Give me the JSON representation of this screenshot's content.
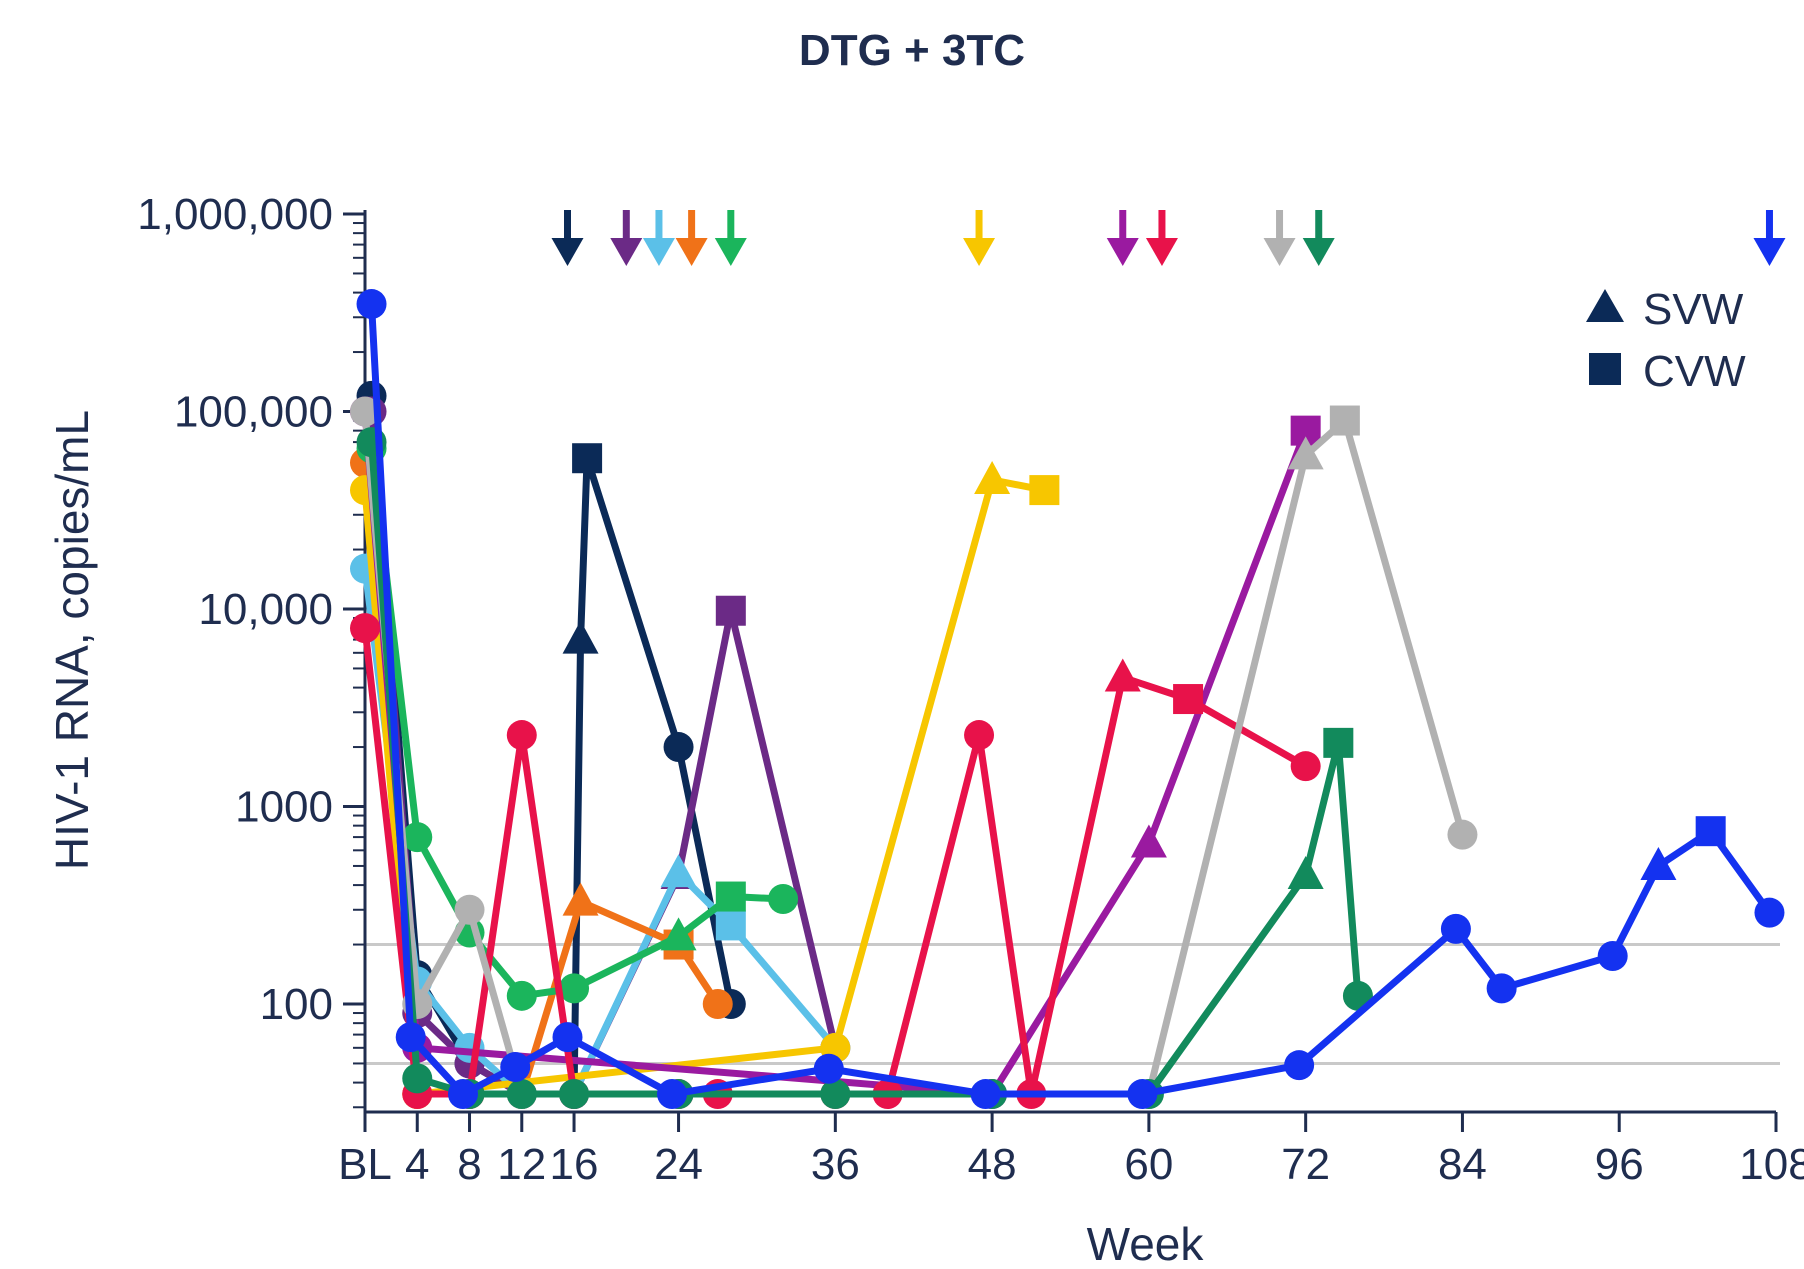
{
  "chart_data": {
    "type": "line",
    "title": "DTG + 3TC",
    "xlabel": "Week",
    "ylabel": "HIV-1  RNA, copies/mL",
    "xlim": [
      0,
      108
    ],
    "ylim": [
      30,
      1000000
    ],
    "y_scale": "log",
    "x_ticks": [
      {
        "value": 0,
        "label": "BL"
      },
      {
        "value": 4,
        "label": "4"
      },
      {
        "value": 8,
        "label": "8"
      },
      {
        "value": 12,
        "label": "12"
      },
      {
        "value": 16,
        "label": "16"
      },
      {
        "value": 24,
        "label": "24"
      },
      {
        "value": 36,
        "label": "36"
      },
      {
        "value": 48,
        "label": "48"
      },
      {
        "value": 60,
        "label": "60"
      },
      {
        "value": 72,
        "label": "72"
      },
      {
        "value": 84,
        "label": "84"
      },
      {
        "value": 96,
        "label": "96"
      },
      {
        "value": 108,
        "label": "108"
      }
    ],
    "y_ticks": [
      {
        "value": 100,
        "label": "100"
      },
      {
        "value": 1000,
        "label": "1000"
      },
      {
        "value": 10000,
        "label": "10,000"
      },
      {
        "value": 100000,
        "label": "100,000"
      },
      {
        "value": 1000000,
        "label": "1,000,000"
      }
    ],
    "reference_lines": [
      200,
      50
    ],
    "legend": {
      "placement": "top-right",
      "items": [
        {
          "marker": "triangle",
          "label": "SVW"
        },
        {
          "marker": "square",
          "label": "CVW"
        }
      ]
    },
    "series": [
      {
        "color": "#0b2a57",
        "arrow_week": 15.5,
        "points": [
          {
            "x": 0.5,
            "y": 120000,
            "m": "circle"
          },
          {
            "x": 4,
            "y": 140,
            "m": "circle"
          },
          {
            "x": 8,
            "y": 50,
            "m": "circle"
          },
          {
            "x": 12,
            "y": 35,
            "m": "circle"
          },
          {
            "x": 16,
            "y": 35,
            "m": "circle"
          },
          {
            "x": 16.5,
            "y": 7000,
            "m": "triangle"
          },
          {
            "x": 17,
            "y": 58000,
            "m": "square"
          },
          {
            "x": 24,
            "y": 2000,
            "m": "circle"
          },
          {
            "x": 28,
            "y": 100,
            "m": "circle"
          }
        ]
      },
      {
        "color": "#6b2a86",
        "arrow_week": 20,
        "points": [
          {
            "x": 0.5,
            "y": 100000,
            "m": "circle"
          },
          {
            "x": 4,
            "y": 90,
            "m": "circle"
          },
          {
            "x": 8,
            "y": 50,
            "m": "circle"
          },
          {
            "x": 12,
            "y": 35,
            "m": "circle"
          },
          {
            "x": 16,
            "y": 35,
            "m": "circle"
          },
          {
            "x": 24,
            "y": 450,
            "m": "triangle"
          },
          {
            "x": 28,
            "y": 9800,
            "m": "square"
          },
          {
            "x": 36,
            "y": 60,
            "m": "circle"
          }
        ]
      },
      {
        "color": "#5bc0e8",
        "arrow_week": 22.5,
        "points": [
          {
            "x": 0,
            "y": 16000,
            "m": "circle"
          },
          {
            "x": 4,
            "y": 130,
            "m": "circle"
          },
          {
            "x": 8,
            "y": 60,
            "m": "circle"
          },
          {
            "x": 12,
            "y": 35,
            "m": "circle"
          },
          {
            "x": 16,
            "y": 35,
            "m": "circle"
          },
          {
            "x": 24,
            "y": 460,
            "m": "triangle"
          },
          {
            "x": 28,
            "y": 250,
            "m": "square"
          },
          {
            "x": 36,
            "y": 60,
            "m": "circle"
          }
        ]
      },
      {
        "color": "#f07218",
        "arrow_week": 25,
        "points": [
          {
            "x": 0,
            "y": 55000,
            "m": "circle"
          },
          {
            "x": 4,
            "y": 35,
            "m": "circle"
          },
          {
            "x": 8,
            "y": 35,
            "m": "circle"
          },
          {
            "x": 12,
            "y": 35,
            "m": "circle"
          },
          {
            "x": 16.5,
            "y": 330,
            "m": "triangle"
          },
          {
            "x": 24,
            "y": 200,
            "m": "square"
          },
          {
            "x": 27,
            "y": 100,
            "m": "circle"
          }
        ]
      },
      {
        "color": "#1bb55c",
        "arrow_week": 28,
        "points": [
          {
            "x": 0.5,
            "y": 65000,
            "m": "circle"
          },
          {
            "x": 4,
            "y": 700,
            "m": "circle"
          },
          {
            "x": 8,
            "y": 230,
            "m": "circle"
          },
          {
            "x": 12,
            "y": 110,
            "m": "circle"
          },
          {
            "x": 16,
            "y": 120,
            "m": "circle"
          },
          {
            "x": 24,
            "y": 220,
            "m": "triangle"
          },
          {
            "x": 28,
            "y": 350,
            "m": "square"
          },
          {
            "x": 32,
            "y": 340,
            "m": "circle"
          }
        ]
      },
      {
        "color": "#f7c600",
        "arrow_week": 47,
        "points": [
          {
            "x": 0,
            "y": 40000,
            "m": "circle"
          },
          {
            "x": 4,
            "y": 35,
            "m": "circle"
          },
          {
            "x": 36,
            "y": 60,
            "m": "circle"
          },
          {
            "x": 48,
            "y": 45000,
            "m": "triangle"
          },
          {
            "x": 52,
            "y": 40000,
            "m": "square"
          }
        ]
      },
      {
        "color": "#9a1aa0",
        "arrow_week": 58,
        "points": [
          {
            "x": 0,
            "y": 100000,
            "m": "circle"
          },
          {
            "x": 4,
            "y": 60,
            "m": "circle"
          },
          {
            "x": 48,
            "y": 35,
            "m": "circle"
          },
          {
            "x": 60,
            "y": 650,
            "m": "triangle"
          },
          {
            "x": 72,
            "y": 80000,
            "m": "square"
          }
        ]
      },
      {
        "color": "#e8124a",
        "arrow_week": 61,
        "points": [
          {
            "x": 0,
            "y": 8000,
            "m": "circle"
          },
          {
            "x": 4,
            "y": 35,
            "m": "circle"
          },
          {
            "x": 8,
            "y": 35,
            "m": "circle"
          },
          {
            "x": 12,
            "y": 2300,
            "m": "circle"
          },
          {
            "x": 16,
            "y": 35,
            "m": "circle"
          },
          {
            "x": 24,
            "y": 35,
            "m": "circle"
          },
          {
            "x": 27,
            "y": 35,
            "m": "circle"
          },
          {
            "x": 36,
            "y": 35,
            "m": "circle"
          },
          {
            "x": 40,
            "y": 35,
            "m": "circle"
          },
          {
            "x": 47,
            "y": 2300,
            "m": "circle"
          },
          {
            "x": 51,
            "y": 35,
            "m": "circle"
          },
          {
            "x": 58,
            "y": 4500,
            "m": "triangle"
          },
          {
            "x": 63,
            "y": 3500,
            "m": "square"
          },
          {
            "x": 72,
            "y": 1600,
            "m": "circle"
          }
        ]
      },
      {
        "color": "#b1b1b1",
        "arrow_week": 70,
        "points": [
          {
            "x": 0,
            "y": 100000,
            "m": "circle"
          },
          {
            "x": 4,
            "y": 100,
            "m": "circle"
          },
          {
            "x": 8,
            "y": 300,
            "m": "circle"
          },
          {
            "x": 12,
            "y": 35,
            "m": "circle"
          },
          {
            "x": 60,
            "y": 35,
            "m": "circle"
          },
          {
            "x": 72,
            "y": 60000,
            "m": "triangle"
          },
          {
            "x": 75,
            "y": 90000,
            "m": "square"
          },
          {
            "x": 84,
            "y": 720,
            "m": "circle"
          }
        ]
      },
      {
        "color": "#128a5c",
        "arrow_week": 73,
        "points": [
          {
            "x": 0.5,
            "y": 70000,
            "m": "circle"
          },
          {
            "x": 4,
            "y": 42,
            "m": "circle"
          },
          {
            "x": 8,
            "y": 35,
            "m": "circle"
          },
          {
            "x": 12,
            "y": 35,
            "m": "circle"
          },
          {
            "x": 16,
            "y": 35,
            "m": "circle"
          },
          {
            "x": 24,
            "y": 35,
            "m": "circle"
          },
          {
            "x": 36,
            "y": 35,
            "m": "circle"
          },
          {
            "x": 48,
            "y": 35,
            "m": "circle"
          },
          {
            "x": 60,
            "y": 35,
            "m": "circle"
          },
          {
            "x": 72,
            "y": 450,
            "m": "triangle"
          },
          {
            "x": 74.5,
            "y": 2100,
            "m": "square"
          },
          {
            "x": 76,
            "y": 110,
            "m": "circle"
          }
        ]
      },
      {
        "color": "#1432f0",
        "arrow_week": 107.5,
        "points": [
          {
            "x": 0.5,
            "y": 350000,
            "m": "circle"
          },
          {
            "x": 3.5,
            "y": 68,
            "m": "circle"
          },
          {
            "x": 7.5,
            "y": 35,
            "m": "circle"
          },
          {
            "x": 11.5,
            "y": 48,
            "m": "circle"
          },
          {
            "x": 15.5,
            "y": 68,
            "m": "circle"
          },
          {
            "x": 23.5,
            "y": 35,
            "m": "circle"
          },
          {
            "x": 35.5,
            "y": 47,
            "m": "circle"
          },
          {
            "x": 47.5,
            "y": 35,
            "m": "circle"
          },
          {
            "x": 59.5,
            "y": 35,
            "m": "circle"
          },
          {
            "x": 71.5,
            "y": 49,
            "m": "circle"
          },
          {
            "x": 83.5,
            "y": 240,
            "m": "circle"
          },
          {
            "x": 87,
            "y": 120,
            "m": "circle"
          },
          {
            "x": 95.5,
            "y": 175,
            "m": "circle"
          },
          {
            "x": 99,
            "y": 500,
            "m": "triangle"
          },
          {
            "x": 103,
            "y": 750,
            "m": "square"
          },
          {
            "x": 107.5,
            "y": 290,
            "m": "circle"
          }
        ]
      }
    ]
  }
}
